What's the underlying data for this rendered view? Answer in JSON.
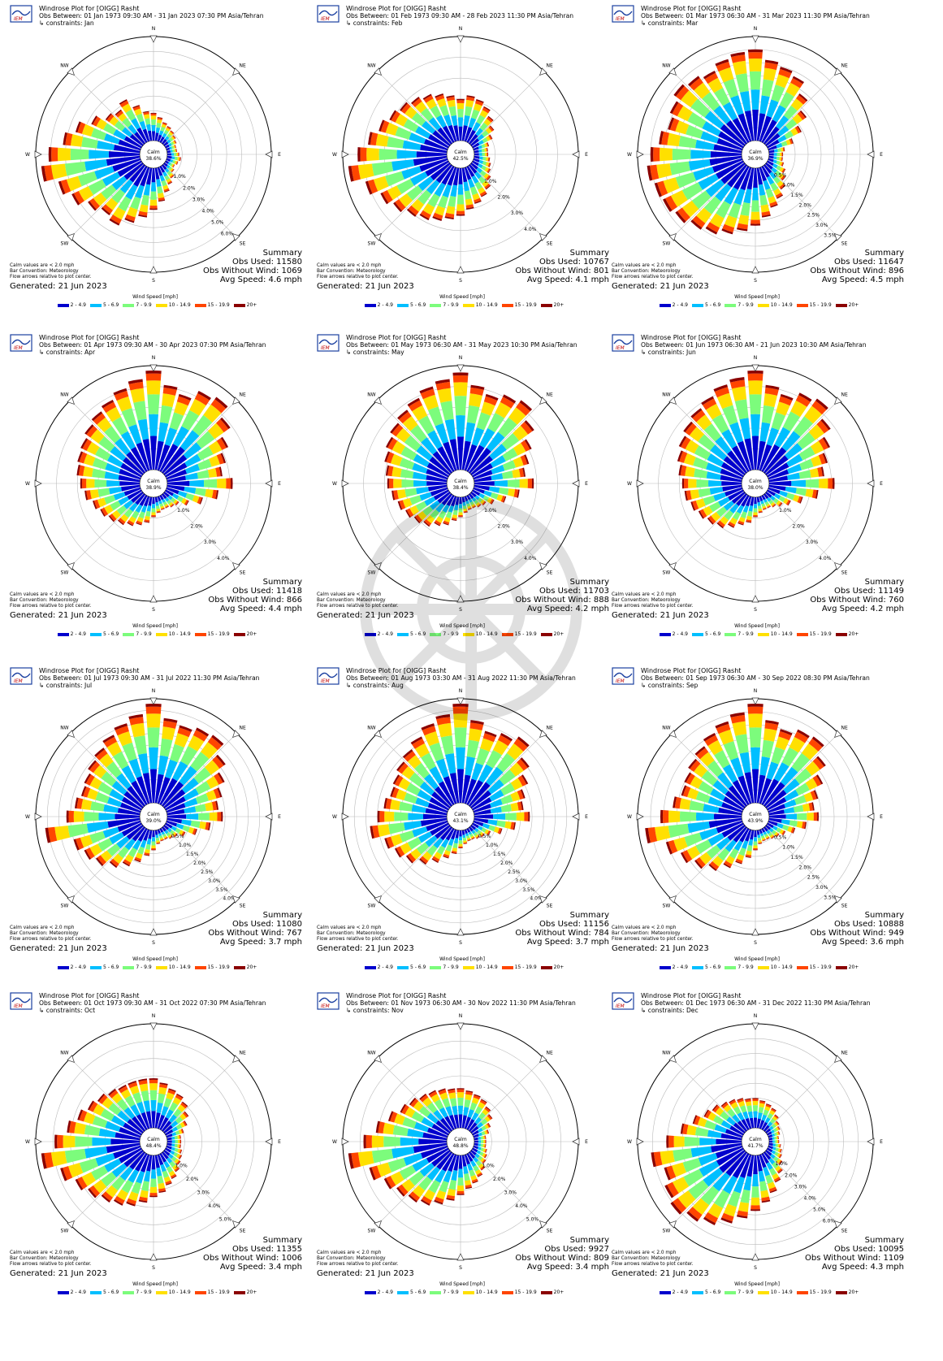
{
  "colors": [
    "#0000cd",
    "#00bfff",
    "#7cfc7c",
    "#ffe000",
    "#ff4500",
    "#8b0000"
  ],
  "legend": {
    "title": "Wind Speed [mph]",
    "bins": [
      "2 - 4.9",
      "5 - 6.9",
      "7 - 9.9",
      "10 - 14.9",
      "15 - 19.9",
      "20+"
    ]
  },
  "directions": [
    "N",
    "NE",
    "E",
    "SE",
    "S",
    "SW",
    "W",
    "NW"
  ],
  "calm_note": [
    "Calm values are < 2.0 mph",
    "Bar Convention: Meteorology",
    "Flow arrows relative to plot center."
  ],
  "summary_label": "Summary",
  "calm_label": "Calm",
  "chart_data": [
    {
      "type": "windrose",
      "title": "Windrose Plot for [OIGG] Rasht",
      "period": "Obs Between: 01 Jan 1973 09:30 AM - 31 Jan 2023 07:30 PM Asia/Tehran",
      "constraint": "↳ constraints: Jan",
      "calm": "38.6%",
      "rings": [
        "1.0%",
        "2.0%",
        "3.0%",
        "4.0%",
        "5.0%",
        "6.0%"
      ],
      "obs_used": "Obs Used: 11580",
      "obs_without": "Obs Without Wind: 1069",
      "avg_speed": "Avg Speed: 4.6 mph",
      "generated": "Generated: 21 Jun 2023",
      "shape": [
        0.28,
        0.24,
        0.2,
        0.18,
        0.16,
        0.14,
        0.12,
        0.1,
        0.1,
        0.12,
        0.14,
        0.12,
        0.1,
        0.12,
        0.16,
        0.2,
        0.26,
        0.34,
        0.42,
        0.5,
        0.58,
        0.66,
        0.62,
        0.68,
        0.78,
        0.86,
        1.0,
        0.92,
        0.78,
        0.68,
        0.56,
        0.46,
        0.42,
        0.48,
        0.38,
        0.3
      ]
    },
    {
      "type": "windrose",
      "title": "Windrose Plot for [OIGG] Rasht",
      "period": "Obs Between: 01 Feb 1973 09:30 AM - 28 Feb 2023 11:30 PM Asia/Tehran",
      "constraint": "↳ constraints: Feb",
      "calm": "42.5%",
      "rings": [
        "1.0%",
        "2.0%",
        "3.0%",
        "4.0%"
      ],
      "obs_used": "Obs Used: 10767",
      "obs_without": "Obs Without Wind: 801",
      "avg_speed": "Avg Speed: 4.1 mph",
      "generated": "Generated: 21 Jun 2023",
      "shape": [
        0.42,
        0.46,
        0.44,
        0.4,
        0.34,
        0.28,
        0.22,
        0.16,
        0.14,
        0.14,
        0.16,
        0.18,
        0.2,
        0.24,
        0.3,
        0.34,
        0.38,
        0.42,
        0.48,
        0.52,
        0.56,
        0.6,
        0.64,
        0.7,
        0.76,
        0.86,
        1.0,
        0.9,
        0.8,
        0.72,
        0.66,
        0.62,
        0.58,
        0.54,
        0.5,
        0.46
      ]
    },
    {
      "type": "windrose",
      "title": "Windrose Plot for [OIGG] Rasht",
      "period": "Obs Between: 01 Mar 1973 06:30 AM - 31 Mar 2023 11:30 PM Asia/Tehran",
      "constraint": "↳ constraints: Mar",
      "calm": "36.9%",
      "rings": [
        "0.5%",
        "1.0%",
        "1.5%",
        "2.0%",
        "2.5%",
        "3.0%",
        "3.5%"
      ],
      "obs_used": "Obs Used: 11647",
      "obs_without": "Obs Without Wind: 896",
      "avg_speed": "Avg Speed: 4.5 mph",
      "generated": "Generated: 21 Jun 2023",
      "shape": [
        0.92,
        0.82,
        0.78,
        0.74,
        0.62,
        0.5,
        0.38,
        0.26,
        0.16,
        0.14,
        0.14,
        0.16,
        0.2,
        0.24,
        0.3,
        0.36,
        0.42,
        0.5,
        0.58,
        0.64,
        0.7,
        0.76,
        0.8,
        0.86,
        0.9,
        0.92,
        0.96,
        0.92,
        0.84,
        0.78,
        0.82,
        0.88,
        0.84,
        0.8,
        0.86,
        0.9
      ]
    },
    {
      "type": "windrose",
      "title": "Windrose Plot for [OIGG] Rasht",
      "period": "Obs Between: 01 Apr 1973 09:30 AM - 30 Apr 2023 07:30 PM Asia/Tehran",
      "constraint": "↳ constraints: Apr",
      "calm": "38.9%",
      "rings": [
        "1.0%",
        "2.0%",
        "3.0%",
        "4.0%"
      ],
      "obs_used": "Obs Used: 11418",
      "obs_without": "Obs Without Wind: 866",
      "avg_speed": "Avg Speed: 4.4 mph",
      "generated": "Generated: 21 Jun 2023",
      "shape": [
        1.0,
        0.86,
        0.8,
        0.9,
        0.94,
        0.82,
        0.7,
        0.62,
        0.56,
        0.66,
        0.52,
        0.38,
        0.26,
        0.18,
        0.16,
        0.14,
        0.14,
        0.16,
        0.2,
        0.26,
        0.3,
        0.34,
        0.38,
        0.42,
        0.46,
        0.5,
        0.56,
        0.6,
        0.64,
        0.66,
        0.68,
        0.72,
        0.76,
        0.8,
        0.86,
        0.92
      ]
    },
    {
      "type": "windrose",
      "title": "Windrose Plot for [OIGG] Rasht",
      "period": "Obs Between: 01 May 1973 06:30 AM - 31 May 2023 10:30 PM Asia/Tehran",
      "constraint": "↳ constraints: May",
      "calm": "38.4%",
      "rings": [
        "1.0%",
        "2.0%",
        "3.0%",
        "4.0%"
      ],
      "obs_used": "Obs Used: 11703",
      "obs_without": "Obs Without Wind: 888",
      "avg_speed": "Avg Speed: 4.2 mph",
      "generated": "Generated: 21 Jun 2023",
      "shape": [
        0.98,
        0.86,
        0.8,
        0.86,
        0.9,
        0.78,
        0.66,
        0.58,
        0.52,
        0.6,
        0.46,
        0.34,
        0.24,
        0.18,
        0.16,
        0.14,
        0.14,
        0.16,
        0.2,
        0.24,
        0.3,
        0.34,
        0.4,
        0.44,
        0.48,
        0.52,
        0.56,
        0.6,
        0.62,
        0.66,
        0.7,
        0.74,
        0.78,
        0.82,
        0.88,
        0.92
      ]
    },
    {
      "type": "windrose",
      "title": "Windrose Plot for [OIGG] Rasht",
      "period": "Obs Between: 01 Jun 1973 06:30 AM - 21 Jun 2023 10:30 AM Asia/Tehran",
      "constraint": "↳ constraints: Jun",
      "calm": "38.0%",
      "rings": [
        "1.0%",
        "2.0%",
        "3.0%",
        "4.0%"
      ],
      "obs_used": "Obs Used: 11149",
      "obs_without": "Obs Without Wind: 760",
      "avg_speed": "Avg Speed: 4.2 mph",
      "generated": "Generated: 21 Jun 2023",
      "shape": [
        1.0,
        0.86,
        0.8,
        0.88,
        0.92,
        0.8,
        0.7,
        0.62,
        0.56,
        0.66,
        0.5,
        0.36,
        0.26,
        0.2,
        0.16,
        0.14,
        0.14,
        0.16,
        0.2,
        0.26,
        0.3,
        0.36,
        0.42,
        0.46,
        0.5,
        0.54,
        0.58,
        0.6,
        0.64,
        0.68,
        0.72,
        0.76,
        0.8,
        0.84,
        0.9,
        0.94
      ]
    },
    {
      "type": "windrose",
      "title": "Windrose Plot for [OIGG] Rasht",
      "period": "Obs Between: 01 Jul 1973 09:30 AM - 31 Jul 2022 11:30 PM Asia/Tehran",
      "constraint": "↳ constraints: Jul",
      "calm": "39.0%",
      "rings": [
        "0.5%",
        "1.0%",
        "1.5%",
        "2.0%",
        "2.5%",
        "3.0%",
        "3.5%",
        "4.0%"
      ],
      "obs_used": "Obs Used: 11080",
      "obs_without": "Obs Without Wind: 767",
      "avg_speed": "Avg Speed: 3.7 mph",
      "generated": "Generated: 21 Jun 2023",
      "shape": [
        1.0,
        0.86,
        0.82,
        0.86,
        0.88,
        0.76,
        0.66,
        0.58,
        0.52,
        0.56,
        0.44,
        0.32,
        0.22,
        0.16,
        0.14,
        0.12,
        0.12,
        0.14,
        0.2,
        0.26,
        0.34,
        0.42,
        0.5,
        0.58,
        0.64,
        0.7,
        0.96,
        0.74,
        0.66,
        0.62,
        0.64,
        0.68,
        0.72,
        0.78,
        0.84,
        0.9
      ]
    },
    {
      "type": "windrose",
      "title": "Windrose Plot for [OIGG] Rasht",
      "period": "Obs Between: 01 Aug 1973 03:30 AM - 31 Aug 2022 11:30 PM Asia/Tehran",
      "constraint": "↳ constraints: Aug",
      "calm": "43.1%",
      "rings": [
        "0.5%",
        "1.0%",
        "1.5%",
        "2.0%",
        "2.5%",
        "3.0%",
        "3.5%",
        "4.0%"
      ],
      "obs_used": "Obs Used: 11156",
      "obs_without": "Obs Without Wind: 784",
      "avg_speed": "Avg Speed: 3.7 mph",
      "generated": "Generated: 21 Jun 2023",
      "shape": [
        1.0,
        0.84,
        0.76,
        0.8,
        0.86,
        0.72,
        0.62,
        0.54,
        0.5,
        0.56,
        0.42,
        0.3,
        0.2,
        0.16,
        0.14,
        0.12,
        0.12,
        0.14,
        0.18,
        0.24,
        0.3,
        0.38,
        0.46,
        0.54,
        0.6,
        0.66,
        0.78,
        0.7,
        0.64,
        0.6,
        0.62,
        0.66,
        0.7,
        0.76,
        0.84,
        0.9
      ]
    },
    {
      "type": "windrose",
      "title": "Windrose Plot for [OIGG] Rasht",
      "period": "Obs Between: 01 Sep 1973 06:30 AM - 30 Sep 2022 08:30 PM Asia/Tehran",
      "constraint": "↳ constraints: Sep",
      "calm": "43.9%",
      "rings": [
        "0.5%",
        "1.0%",
        "1.5%",
        "2.0%",
        "2.5%",
        "3.0%",
        "3.5%"
      ],
      "obs_used": "Obs Used: 10888",
      "obs_without": "Obs Without Wind: 949",
      "avg_speed": "Avg Speed: 3.6 mph",
      "generated": "Generated: 21 Jun 2023",
      "shape": [
        1.0,
        0.84,
        0.78,
        0.84,
        0.86,
        0.74,
        0.62,
        0.52,
        0.46,
        0.5,
        0.38,
        0.28,
        0.2,
        0.16,
        0.14,
        0.12,
        0.12,
        0.14,
        0.2,
        0.28,
        0.36,
        0.44,
        0.54,
        0.62,
        0.7,
        0.8,
        0.98,
        0.82,
        0.7,
        0.64,
        0.66,
        0.7,
        0.74,
        0.8,
        0.86,
        0.92
      ]
    },
    {
      "type": "windrose",
      "title": "Windrose Plot for [OIGG] Rasht",
      "period": "Obs Between: 01 Oct 1973 09:30 AM - 31 Oct 2022 07:30 PM Asia/Tehran",
      "constraint": "↳ constraints: Oct",
      "calm": "48.4%",
      "rings": [
        "1.0%",
        "2.0%",
        "3.0%",
        "4.0%",
        "5.0%"
      ],
      "obs_used": "Obs Used: 11355",
      "obs_without": "Obs Without Wind: 1006",
      "avg_speed": "Avg Speed: 3.4 mph",
      "generated": "Generated: 21 Jun 2023",
      "shape": [
        0.5,
        0.46,
        0.42,
        0.4,
        0.36,
        0.3,
        0.24,
        0.18,
        0.14,
        0.14,
        0.14,
        0.16,
        0.18,
        0.2,
        0.24,
        0.28,
        0.32,
        0.38,
        0.42,
        0.48,
        0.54,
        0.58,
        0.62,
        0.68,
        0.74,
        0.84,
        1.0,
        0.86,
        0.74,
        0.66,
        0.6,
        0.56,
        0.52,
        0.5,
        0.5,
        0.5
      ]
    },
    {
      "type": "windrose",
      "title": "Windrose Plot for [OIGG] Rasht",
      "period": "Obs Between: 01 Nov 1973 06:30 AM - 30 Nov 2022 11:30 PM Asia/Tehran",
      "constraint": "↳ constraints: Nov",
      "calm": "48.8%",
      "rings": [
        "1.0%",
        "2.0%",
        "3.0%",
        "4.0%",
        "5.0%"
      ],
      "obs_used": "Obs Used: 9927",
      "obs_without": "Obs Without Wind: 809",
      "avg_speed": "Avg Speed: 3.4 mph",
      "generated": "Generated: 21 Jun 2023",
      "shape": [
        0.4,
        0.38,
        0.36,
        0.34,
        0.3,
        0.26,
        0.2,
        0.16,
        0.12,
        0.12,
        0.12,
        0.14,
        0.16,
        0.18,
        0.22,
        0.26,
        0.3,
        0.34,
        0.4,
        0.46,
        0.52,
        0.58,
        0.62,
        0.66,
        0.72,
        0.82,
        1.0,
        0.84,
        0.72,
        0.62,
        0.54,
        0.5,
        0.46,
        0.44,
        0.42,
        0.4
      ]
    },
    {
      "type": "windrose",
      "title": "Windrose Plot for [OIGG] Rasht",
      "period": "Obs Between: 01 Dec 1973 06:30 AM - 31 Dec 2022 11:30 PM Asia/Tehran",
      "constraint": "↳ constraints: Dec",
      "calm": "41.7%",
      "rings": [
        "1.0%",
        "2.0%",
        "3.0%",
        "4.0%",
        "5.0%",
        "6.0%"
      ],
      "obs_used": "Obs Used: 10095",
      "obs_without": "Obs Without Wind: 1109",
      "avg_speed": "Avg Speed: 4.3 mph",
      "generated": "Generated: 21 Jun 2023",
      "shape": [
        0.3,
        0.28,
        0.26,
        0.24,
        0.2,
        0.16,
        0.14,
        0.12,
        0.1,
        0.1,
        0.12,
        0.14,
        0.16,
        0.2,
        0.26,
        0.32,
        0.4,
        0.48,
        0.56,
        0.64,
        0.72,
        0.8,
        0.86,
        0.92,
        0.88,
        0.82,
        0.92,
        0.76,
        0.62,
        0.52,
        0.44,
        0.4,
        0.36,
        0.34,
        0.32,
        0.3
      ]
    }
  ]
}
